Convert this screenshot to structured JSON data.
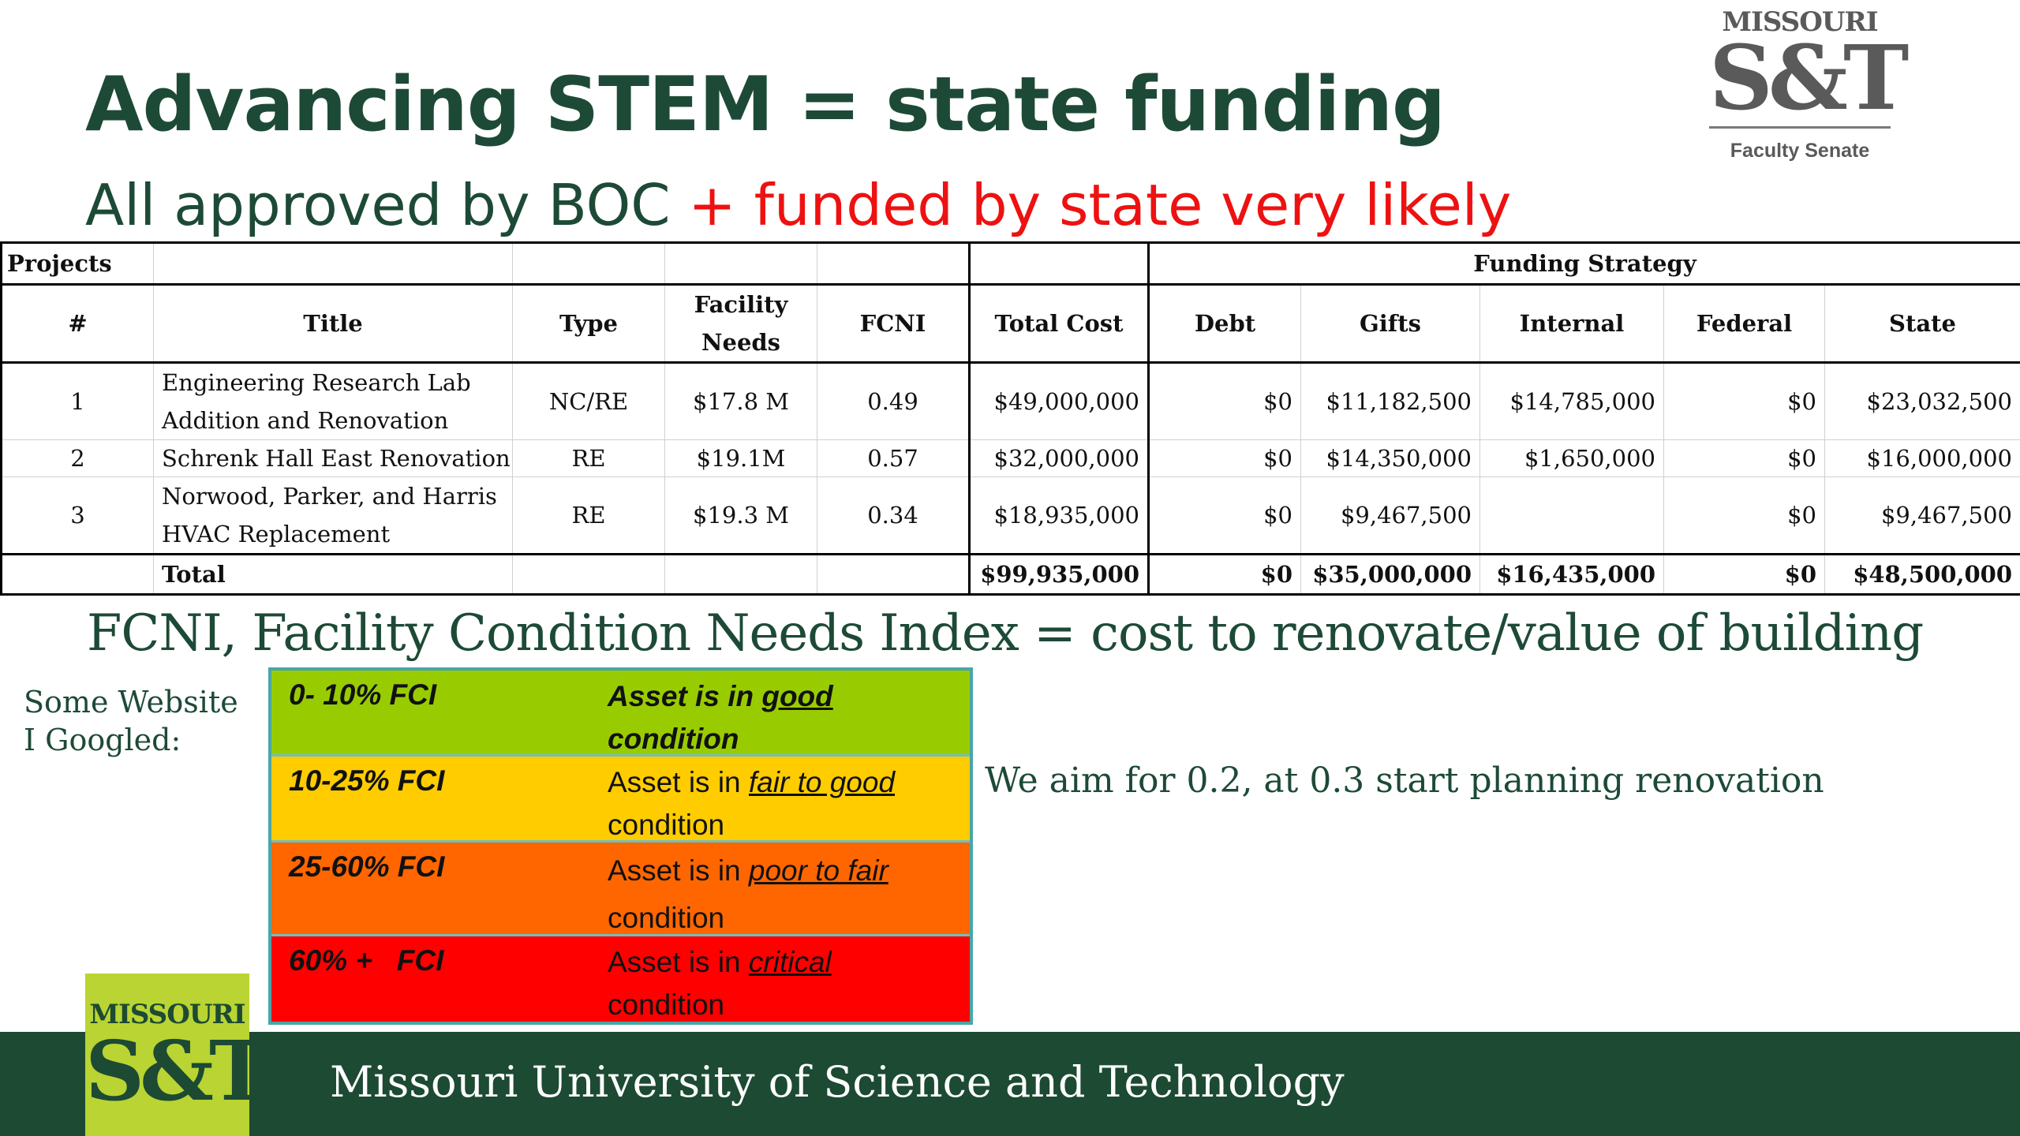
{
  "title": "Advancing STEM = state funding",
  "subtitle": {
    "part1": "All approved by BOC ",
    "part2": "+ funded by state very likely"
  },
  "logo_top": {
    "line1": "MISSOURI",
    "line2": "S&T",
    "caption": "Faculty Senate"
  },
  "table": {
    "group_projects": "Projects",
    "group_funding": "Funding Strategy",
    "headers": [
      "#",
      "Title",
      "Type",
      "Facility Needs",
      "FCNI",
      "Total Cost",
      "Debt",
      "Gifts",
      "Internal",
      "Federal",
      "State"
    ],
    "rows": [
      {
        "num": "1",
        "title": "Engineering Research Lab Addition and Renovation",
        "type": "NC/RE",
        "needs": "$17.8 M",
        "fcni": "0.49",
        "total": "$49,000,000",
        "debt": "$0",
        "gifts": "$11,182,500",
        "internal": "$14,785,000",
        "federal": "$0",
        "state": "$23,032,500"
      },
      {
        "num": "2",
        "title": "Schrenk Hall East Renovation",
        "type": "RE",
        "needs": "$19.1M",
        "fcni": "0.57",
        "total": "$32,000,000",
        "debt": "$0",
        "gifts": "$14,350,000",
        "internal": "$1,650,000",
        "federal": "$0",
        "state": "$16,000,000"
      },
      {
        "num": "3",
        "title": "Norwood, Parker, and Harris HVAC Replacement",
        "type": "RE",
        "needs": "$19.3 M",
        "fcni": "0.34",
        "total": "$18,935,000",
        "debt": "$0",
        "gifts": "$9,467,500",
        "internal": "",
        "federal": "$0",
        "state": "$9,467,500"
      }
    ],
    "total_row": {
      "label": "Total",
      "total": "$99,935,000",
      "debt": "$0",
      "gifts": "$35,000,000",
      "internal": "$16,435,000",
      "federal": "$0",
      "state": "$48,500,000"
    }
  },
  "fcni_definition": "FCNI, Facility Condition Needs Index = cost to renovate/value of building",
  "website_note": "Some Website I Googled:",
  "scale": [
    {
      "range": "0- 10% FCI",
      "prefix": "Asset is in ",
      "emph": "good",
      "suffix": "condition",
      "color": "#99cc00"
    },
    {
      "range": "10-25% FCI",
      "prefix": "Asset is in ",
      "emph": "fair to good",
      "suffix": "condition",
      "color": "#ffcc00"
    },
    {
      "range": "25-60% FCI",
      "prefix": "Asset is in ",
      "emph": "poor to fair",
      "suffix": "condition",
      "color": "#ff6600"
    },
    {
      "range": "60% +   FCI",
      "prefix": "Asset is in ",
      "emph": "critical",
      "suffix": "condition",
      "color": "#ff0000"
    }
  ],
  "aim_text": "We aim for 0.2, at 0.3 start planning renovation",
  "footer": {
    "text": "Missouri University of Science and Technology"
  },
  "logo_bottom": {
    "line1": "MISSOURI",
    "line2": "S&T"
  },
  "colors": {
    "brand_green": "#1c4a33",
    "title_green": "#1d4a36",
    "accent_red": "#ee1111",
    "logo_lime": "#b9d433"
  }
}
